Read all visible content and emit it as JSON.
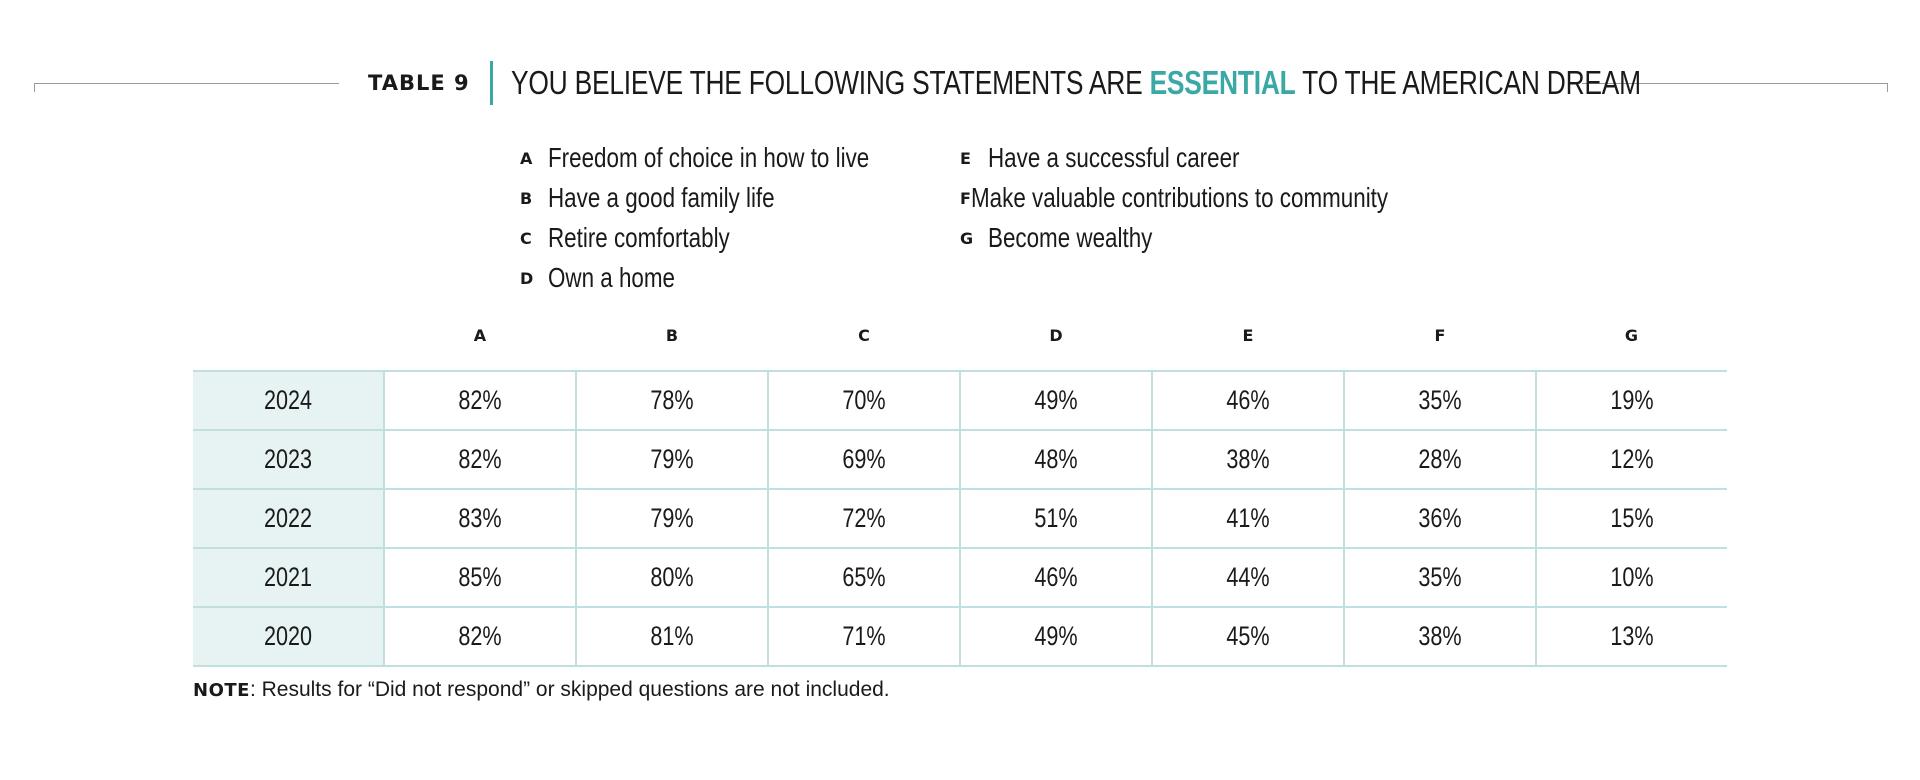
{
  "header": {
    "table_label": "TABLE 9",
    "title_before": "YOU BELIEVE THE FOLLOWING STATEMENTS ARE ",
    "title_accent": "ESSENTIAL",
    "title_after": " TO THE AMERICAN DREAM"
  },
  "colors": {
    "accent": "#3aa8a4",
    "year_cell_bg": "#e6f3f2",
    "grid_line": "#bfe0df"
  },
  "legend": [
    {
      "letter": "A",
      "text": "Freedom of choice in how to live"
    },
    {
      "letter": "B",
      "text": "Have a good family life"
    },
    {
      "letter": "C",
      "text": "Retire comfortably"
    },
    {
      "letter": "D",
      "text": "Own a home"
    },
    {
      "letter": "E",
      "text": "Have a successful career"
    },
    {
      "letter": "F",
      "text": "Make valuable contributions to community"
    },
    {
      "letter": "G",
      "text": "Become wealthy"
    }
  ],
  "chart_data": {
    "type": "table",
    "title": "YOU BELIEVE THE FOLLOWING STATEMENTS ARE ESSENTIAL TO THE AMERICAN DREAM",
    "columns": [
      "A",
      "B",
      "C",
      "D",
      "E",
      "F",
      "G"
    ],
    "rows": [
      {
        "year": "2024",
        "values": [
          "82%",
          "78%",
          "70%",
          "49%",
          "46%",
          "35%",
          "19%"
        ]
      },
      {
        "year": "2023",
        "values": [
          "82%",
          "79%",
          "69%",
          "48%",
          "38%",
          "28%",
          "12%"
        ]
      },
      {
        "year": "2022",
        "values": [
          "83%",
          "79%",
          "72%",
          "51%",
          "41%",
          "36%",
          "15%"
        ]
      },
      {
        "year": "2021",
        "values": [
          "85%",
          "80%",
          "65%",
          "46%",
          "44%",
          "35%",
          "10%"
        ]
      },
      {
        "year": "2020",
        "values": [
          "82%",
          "81%",
          "71%",
          "49%",
          "45%",
          "38%",
          "13%"
        ]
      }
    ]
  },
  "note": {
    "label": "NOTE",
    "text": ": Results for “Did not respond” or skipped questions are not included."
  }
}
